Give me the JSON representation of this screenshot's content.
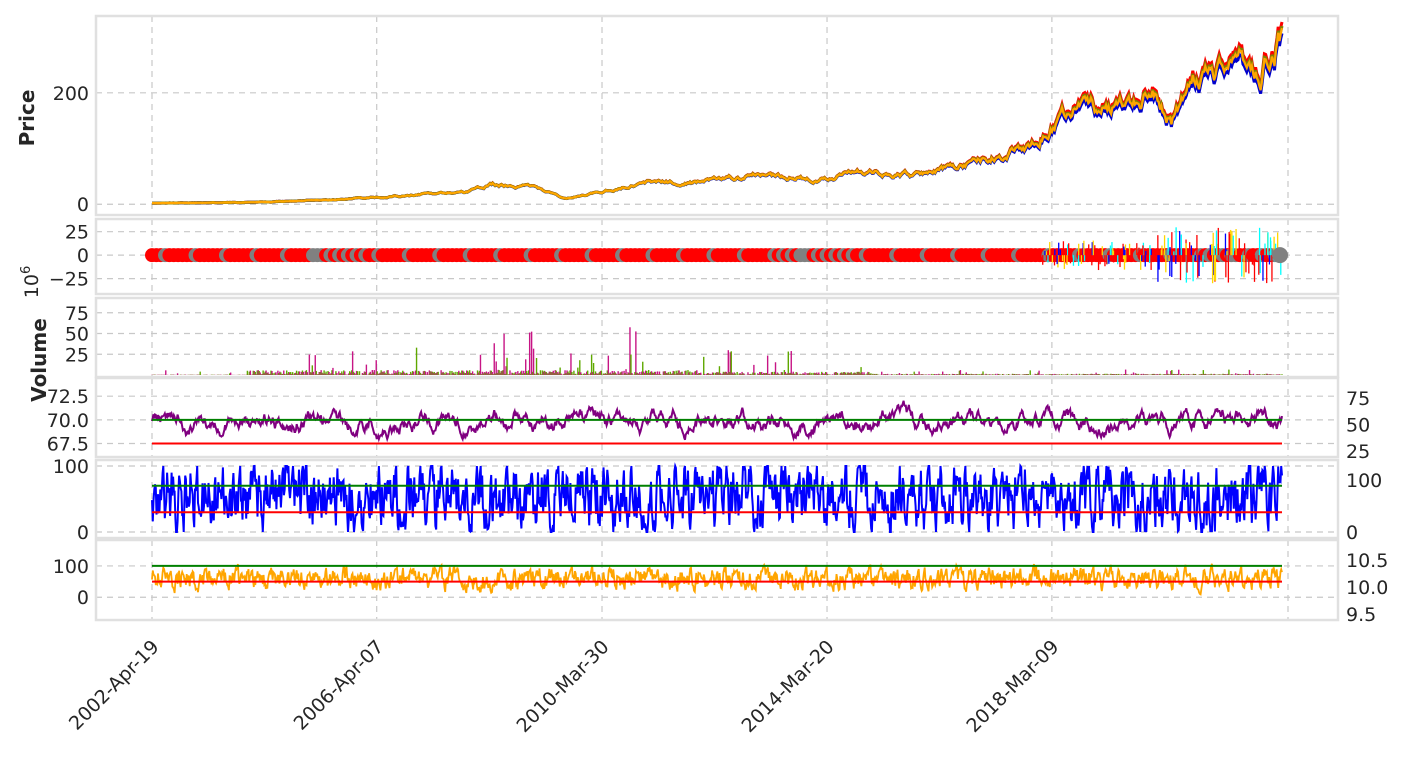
{
  "chart_data": {
    "type": "line",
    "x_dates": [
      "2002-Apr-19",
      "2006-Apr-07",
      "2010-Mar-30",
      "2014-Mar-20",
      "2018-Mar-09"
    ],
    "x_range": [
      "2002-Apr-19",
      "2022-Apr-01"
    ],
    "grid": true,
    "panels": [
      {
        "name": "price",
        "ylabel": "Price",
        "yticks": [
          "0",
          "200"
        ],
        "ylim": [
          -5,
          320
        ],
        "series_colors": [
          "#ff0000",
          "#0000cd",
          "#808000",
          "#ffa500"
        ],
        "anchors": [
          [
            2002.3,
            2
          ],
          [
            2004.0,
            3
          ],
          [
            2005.5,
            8
          ],
          [
            2006.5,
            14
          ],
          [
            2007.8,
            22
          ],
          [
            2008.3,
            36
          ],
          [
            2009.0,
            30
          ],
          [
            2009.6,
            10
          ],
          [
            2010.3,
            24
          ],
          [
            2011.0,
            38
          ],
          [
            2012.0,
            40
          ],
          [
            2013.0,
            52
          ],
          [
            2014.0,
            46
          ],
          [
            2014.8,
            56
          ],
          [
            2015.8,
            52
          ],
          [
            2016.8,
            75
          ],
          [
            2017.8,
            108
          ],
          [
            2018.5,
            170
          ],
          [
            2019.2,
            165
          ],
          [
            2020.0,
            200
          ],
          [
            2020.3,
            150
          ],
          [
            2020.7,
            215
          ],
          [
            2021.3,
            240
          ],
          [
            2021.9,
            255
          ],
          [
            2022.3,
            310
          ],
          [
            2022.4,
            300
          ]
        ]
      },
      {
        "name": "candles",
        "yticks": [
          "25",
          "0",
          "−25"
        ],
        "ylim": [
          -35,
          30
        ],
        "marker_colors": [
          "#ff0000",
          "#808080"
        ],
        "bar_colors": [
          "#ff0000",
          "#0000ff",
          "#00ffff",
          "#ffd700"
        ]
      },
      {
        "name": "volume",
        "ylabel": "Volume",
        "scale_label": "10",
        "scale_exponent": "6",
        "yticks": [
          "75",
          "50",
          "25"
        ],
        "ylim": [
          0,
          88
        ],
        "bar_colors": [
          "#c71585",
          "#5fa800"
        ]
      },
      {
        "name": "rsi",
        "yticks": [
          "72.5",
          "70.0",
          "67.5"
        ],
        "yticks_right": [
          "75",
          "50",
          "25"
        ],
        "ylim": [
          66.5,
          74
        ],
        "lines": [
          {
            "value": 70.0,
            "color": "#008000"
          },
          {
            "value": 67.5,
            "color": "#ff0000"
          }
        ],
        "line_color": "#800080"
      },
      {
        "name": "stochastic",
        "yticks": [
          "100",
          "0"
        ],
        "yticks_right": [
          "100",
          "0"
        ],
        "ylim": [
          -3,
          103
        ],
        "lines": [
          {
            "value": 70,
            "color": "#008000"
          },
          {
            "value": 30,
            "color": "#ff0000"
          }
        ],
        "line_color": "#0000ff"
      },
      {
        "name": "cci",
        "yticks": [
          "100",
          "0"
        ],
        "yticks_right": [
          "10.5",
          "10.0",
          "9.5"
        ],
        "ylim": [
          -60,
          170
        ],
        "lines": [
          {
            "value": 100,
            "color": "#008000"
          },
          {
            "value": 50,
            "color": "#ff0000"
          }
        ],
        "line_color": "#ffa500"
      }
    ]
  }
}
